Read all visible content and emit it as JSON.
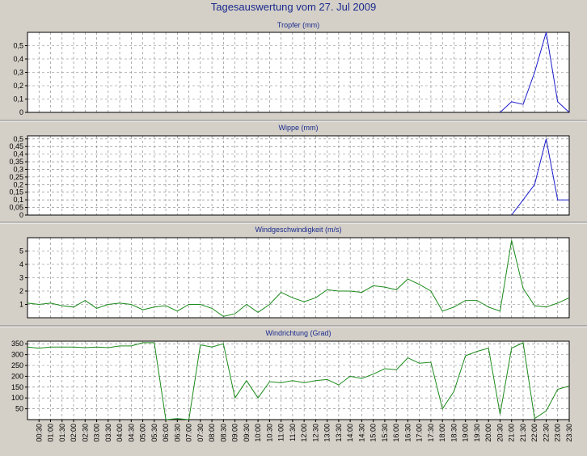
{
  "title": "Tagesauswertung vom 27. Jul 2009",
  "colors": {
    "background": "#d4d0c8",
    "plot_bg": "#ffffff",
    "rain": "#1a1acc",
    "wind": "#1a8a1a",
    "title": "#1a2a8c"
  },
  "chart_data": [
    {
      "type": "line",
      "title": "Tropfer (mm)",
      "color": "#1a1acc",
      "ylim": [
        0,
        0.6
      ],
      "yticks": [
        0,
        0.1,
        0.2,
        0.3,
        0.4,
        0.5
      ],
      "ytick_labels": [
        "0",
        "0,1",
        "0,2",
        "0,3",
        "0,4",
        "0,5"
      ],
      "grid": true,
      "points": [
        [
          20.5,
          0
        ],
        [
          21.0,
          0.08
        ],
        [
          21.5,
          0.06
        ],
        [
          22.0,
          0.3
        ],
        [
          22.5,
          0.6
        ],
        [
          23.0,
          0.08
        ],
        [
          23.5,
          0
        ]
      ]
    },
    {
      "type": "line",
      "title": "Wippe (mm)",
      "color": "#1a1acc",
      "ylim": [
        0,
        0.52
      ],
      "yticks": [
        0,
        0.05,
        0.1,
        0.15,
        0.2,
        0.25,
        0.3,
        0.35,
        0.4,
        0.45,
        0.5
      ],
      "ytick_labels": [
        "0",
        "0,05",
        "0,1",
        "0,15",
        "0,2",
        "0,25",
        "0,3",
        "0,35",
        "0,4",
        "0,45",
        "0,5"
      ],
      "grid": true,
      "points": [
        [
          21.0,
          0
        ],
        [
          21.5,
          0.1
        ],
        [
          22.0,
          0.2
        ],
        [
          22.5,
          0.5
        ],
        [
          23.0,
          0.1
        ],
        [
          23.5,
          0.1
        ]
      ]
    },
    {
      "type": "line",
      "title": "Windgeschwindigkeit (m/s)",
      "color": "#1a8a1a",
      "ylim": [
        0,
        6
      ],
      "yticks": [
        1,
        2,
        3,
        4,
        5
      ],
      "ytick_labels": [
        "1",
        "2",
        "3",
        "4",
        "5"
      ],
      "grid": true,
      "points": [
        [
          0.0,
          1.1
        ],
        [
          0.5,
          1.0
        ],
        [
          1.0,
          1.1
        ],
        [
          1.5,
          0.9
        ],
        [
          2.0,
          0.8
        ],
        [
          2.5,
          1.3
        ],
        [
          3.0,
          0.7
        ],
        [
          3.5,
          1.0
        ],
        [
          4.0,
          1.1
        ],
        [
          4.5,
          1.0
        ],
        [
          5.0,
          0.6
        ],
        [
          5.5,
          0.8
        ],
        [
          6.0,
          0.9
        ],
        [
          6.5,
          0.5
        ],
        [
          7.0,
          1.0
        ],
        [
          7.5,
          1.0
        ],
        [
          8.0,
          0.7
        ],
        [
          8.5,
          0.1
        ],
        [
          9.0,
          0.3
        ],
        [
          9.5,
          1.0
        ],
        [
          10.0,
          0.4
        ],
        [
          10.5,
          1.0
        ],
        [
          11.0,
          1.9
        ],
        [
          11.5,
          1.5
        ],
        [
          12.0,
          1.2
        ],
        [
          12.5,
          1.5
        ],
        [
          13.0,
          2.1
        ],
        [
          13.5,
          2.0
        ],
        [
          14.0,
          2.0
        ],
        [
          14.5,
          1.9
        ],
        [
          15.0,
          2.4
        ],
        [
          15.5,
          2.3
        ],
        [
          16.0,
          2.1
        ],
        [
          16.5,
          2.9
        ],
        [
          17.0,
          2.5
        ],
        [
          17.5,
          2.0
        ],
        [
          18.0,
          0.5
        ],
        [
          18.5,
          0.8
        ],
        [
          19.0,
          1.3
        ],
        [
          19.5,
          1.3
        ],
        [
          20.0,
          0.8
        ],
        [
          20.5,
          0.5
        ],
        [
          21.0,
          5.8
        ],
        [
          21.5,
          2.2
        ],
        [
          22.0,
          0.9
        ],
        [
          22.5,
          0.8
        ],
        [
          23.0,
          1.1
        ],
        [
          23.5,
          1.5
        ]
      ]
    },
    {
      "type": "line",
      "title": "Windrichtung (Grad)",
      "color": "#1a8a1a",
      "ylim": [
        0,
        362
      ],
      "yticks": [
        50,
        100,
        150,
        200,
        250,
        300,
        350
      ],
      "ytick_labels": [
        "50",
        "100",
        "150",
        "200",
        "250",
        "300",
        "350"
      ],
      "grid": true,
      "points": [
        [
          0.0,
          335
        ],
        [
          0.5,
          330
        ],
        [
          1.0,
          335
        ],
        [
          1.5,
          335
        ],
        [
          2.0,
          335
        ],
        [
          2.5,
          332
        ],
        [
          3.0,
          335
        ],
        [
          3.5,
          332
        ],
        [
          4.0,
          340
        ],
        [
          4.5,
          340
        ],
        [
          5.0,
          355
        ],
        [
          5.5,
          355
        ],
        [
          6.0,
          0
        ],
        [
          6.5,
          5
        ],
        [
          7.0,
          0
        ],
        [
          7.5,
          345
        ],
        [
          8.0,
          335
        ],
        [
          8.5,
          350
        ],
        [
          9.0,
          100
        ],
        [
          9.5,
          180
        ],
        [
          10.0,
          100
        ],
        [
          10.5,
          175
        ],
        [
          11.0,
          170
        ],
        [
          11.5,
          180
        ],
        [
          12.0,
          170
        ],
        [
          12.5,
          180
        ],
        [
          13.0,
          185
        ],
        [
          13.5,
          160
        ],
        [
          14.0,
          200
        ],
        [
          14.5,
          190
        ],
        [
          15.0,
          210
        ],
        [
          15.5,
          235
        ],
        [
          16.0,
          230
        ],
        [
          16.5,
          285
        ],
        [
          17.0,
          260
        ],
        [
          17.5,
          265
        ],
        [
          18.0,
          50
        ],
        [
          18.5,
          130
        ],
        [
          19.0,
          295
        ],
        [
          19.5,
          315
        ],
        [
          20.0,
          330
        ],
        [
          20.5,
          25
        ],
        [
          21.0,
          330
        ],
        [
          21.5,
          355
        ],
        [
          22.0,
          5
        ],
        [
          22.5,
          40
        ],
        [
          23.0,
          140
        ],
        [
          23.5,
          155
        ]
      ]
    }
  ],
  "x_tick_labels": [
    "00:30",
    "01:00",
    "01:30",
    "02:00",
    "02:30",
    "03:00",
    "03:30",
    "04:00",
    "04:30",
    "05:00",
    "05:30",
    "06:00",
    "06:30",
    "07:00",
    "07:30",
    "08:00",
    "08:30",
    "09:00",
    "09:30",
    "10:00",
    "10:30",
    "11:00",
    "11:30",
    "12:00",
    "12:30",
    "13:00",
    "13:30",
    "14:00",
    "14:30",
    "15:00",
    "15:30",
    "16:00",
    "16:30",
    "17:00",
    "17:30",
    "18:00",
    "18:30",
    "19:00",
    "19:30",
    "20:00",
    "20:30",
    "21:00",
    "21:30",
    "22:00",
    "22:30",
    "23:00",
    "23:30"
  ]
}
